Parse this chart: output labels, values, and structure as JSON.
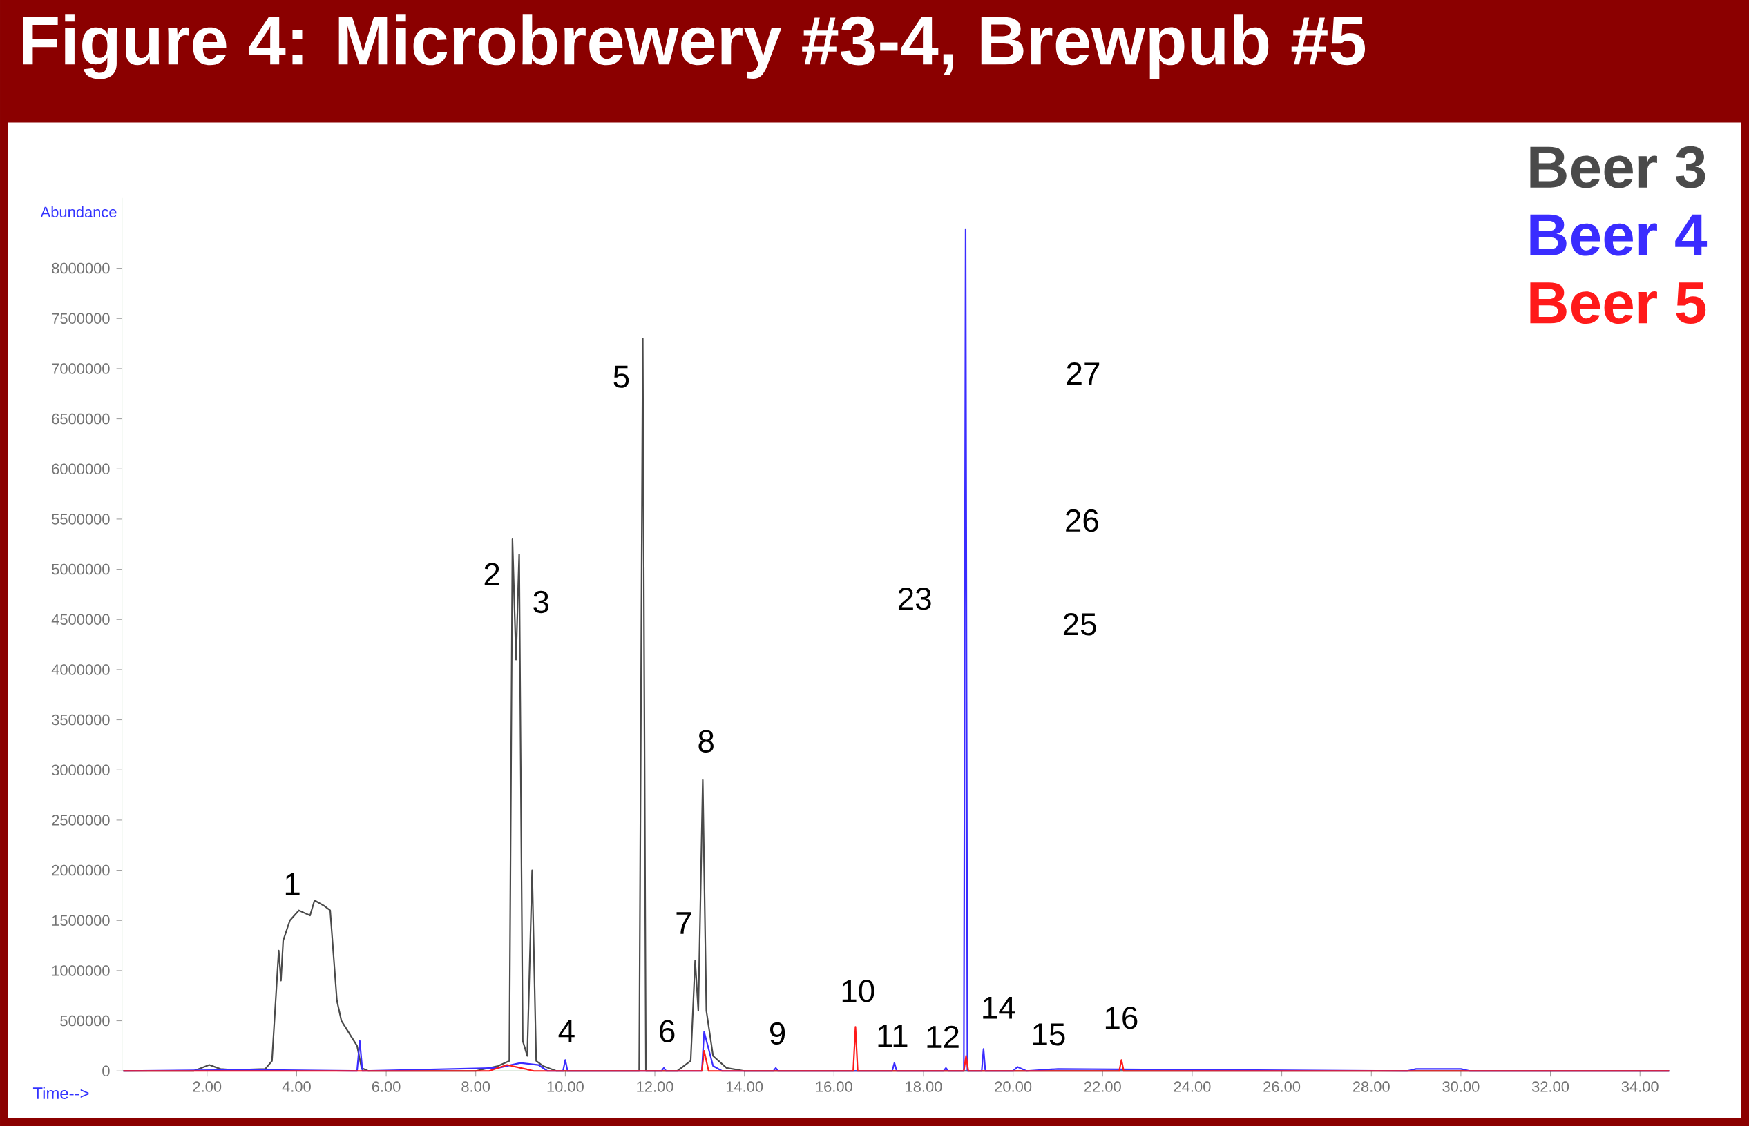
{
  "chart_data": {
    "type": "line",
    "title": "Figure 4: Microbrewery #3-4, Brewpub #5",
    "xlabel": "Time-->",
    "ylabel": "Abundance",
    "xlim": [
      0.1,
      34.65
    ],
    "ylim": [
      0,
      8700000
    ],
    "xticks": [
      {
        "value": 2,
        "label": "2.00"
      },
      {
        "value": 4,
        "label": "4.00"
      },
      {
        "value": 6,
        "label": "6.00"
      },
      {
        "value": 8,
        "label": "8.00"
      },
      {
        "value": 10,
        "label": "10.00"
      },
      {
        "value": 12,
        "label": "12.00"
      },
      {
        "value": 14,
        "label": "14.00"
      },
      {
        "value": 16,
        "label": "16.00"
      },
      {
        "value": 18,
        "label": "18.00"
      },
      {
        "value": 20,
        "label": "20.00"
      },
      {
        "value": 22,
        "label": "22.00"
      },
      {
        "value": 24,
        "label": "24.00"
      },
      {
        "value": 26,
        "label": "26.00"
      },
      {
        "value": 28,
        "label": "28.00"
      },
      {
        "value": 30,
        "label": "30.00"
      },
      {
        "value": 32,
        "label": "32.00"
      },
      {
        "value": 34,
        "label": "34.00"
      }
    ],
    "yticks": [
      0,
      500000,
      1000000,
      1500000,
      2000000,
      2500000,
      3000000,
      3500000,
      4000000,
      4500000,
      5000000,
      5500000,
      6000000,
      6500000,
      7000000,
      7500000,
      8000000
    ],
    "legend": "top right",
    "series": [
      {
        "name": "Beer 3",
        "color": "#4a4a4a",
        "x": [
          0.13,
          1.7,
          2.05,
          2.3,
          2.6,
          3.3,
          3.45,
          3.6,
          3.65,
          3.7,
          3.85,
          4.05,
          4.3,
          4.4,
          4.6,
          4.75,
          4.9,
          5.0,
          5.35,
          5.45,
          5.6,
          8.0,
          8.5,
          8.75,
          8.82,
          8.9,
          8.97,
          9.05,
          9.15,
          9.26,
          9.35,
          9.5,
          9.8,
          11.65,
          11.73,
          11.8,
          12.5,
          12.8,
          12.9,
          12.97,
          13.07,
          13.15,
          13.3,
          13.6,
          14.0,
          34.65
        ],
        "values": [
          0,
          0,
          60000,
          20000,
          10000,
          20000,
          100000,
          1200000,
          900000,
          1300000,
          1500000,
          1600000,
          1550000,
          1700000,
          1650000,
          1600000,
          700000,
          500000,
          250000,
          30000,
          0,
          0,
          50000,
          100000,
          5300000,
          4100000,
          5150000,
          300000,
          150000,
          2000000,
          100000,
          50000,
          0,
          0,
          7300000,
          0,
          0,
          100000,
          1100000,
          600000,
          2900000,
          600000,
          150000,
          30000,
          0,
          0
        ]
      },
      {
        "name": "Beer 4",
        "color": "#3a2cff",
        "x": [
          0.13,
          2.7,
          3.3,
          5.35,
          5.41,
          5.47,
          8.5,
          9.0,
          9.4,
          9.6,
          9.95,
          10.0,
          10.05,
          12.15,
          12.2,
          12.25,
          13.05,
          13.1,
          13.3,
          13.5,
          14.65,
          14.7,
          14.75,
          17.3,
          17.35,
          17.4,
          18.45,
          18.5,
          18.55,
          18.9,
          18.94,
          18.98,
          19.3,
          19.34,
          19.38,
          20.0,
          20.1,
          20.3,
          21.0,
          28.8,
          29.0,
          30.0,
          30.2,
          34.65
        ],
        "values": [
          0,
          10000,
          10000,
          0,
          300000,
          0,
          30000,
          80000,
          60000,
          0,
          0,
          110000,
          0,
          0,
          30000,
          0,
          0,
          390000,
          50000,
          0,
          0,
          30000,
          0,
          0,
          80000,
          0,
          0,
          30000,
          0,
          0,
          8390000,
          0,
          0,
          220000,
          0,
          0,
          40000,
          0,
          20000,
          0,
          20000,
          20000,
          0,
          0
        ]
      },
      {
        "name": "Beer 5",
        "color": "#ff1a1a",
        "x": [
          0.13,
          8.3,
          8.7,
          9.0,
          9.3,
          13.05,
          13.1,
          13.2,
          16.43,
          16.48,
          16.53,
          18.9,
          18.95,
          19.0,
          22.37,
          22.42,
          22.47,
          34.65
        ],
        "values": [
          0,
          0,
          60000,
          30000,
          0,
          0,
          200000,
          0,
          0,
          440000,
          0,
          0,
          150000,
          0,
          0,
          110000,
          0,
          0
        ]
      }
    ],
    "annotations": [
      "1",
      "2",
      "3",
      "4",
      "5",
      "6",
      "7",
      "8",
      "9",
      "10",
      "11",
      "12",
      "14",
      "15",
      "16",
      "23",
      "25",
      "26",
      "27"
    ]
  }
}
